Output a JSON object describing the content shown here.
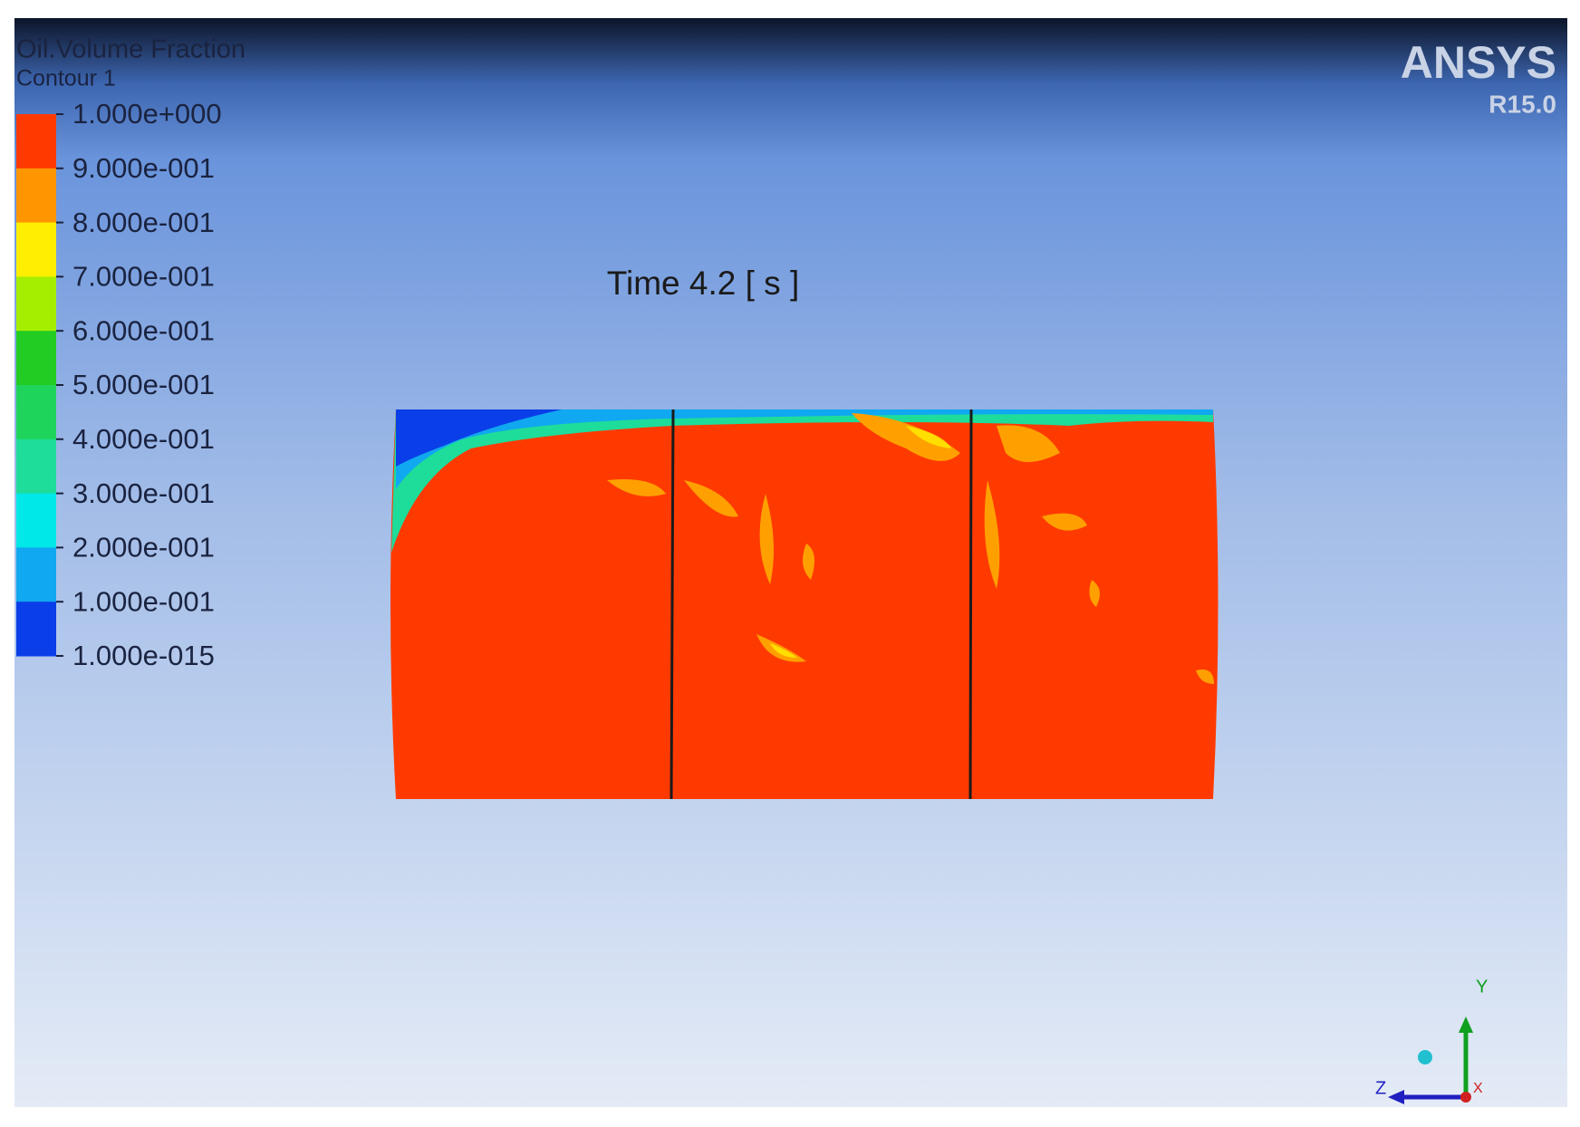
{
  "legend": {
    "title": "Oil.Volume Fraction",
    "subtitle": "Contour 1",
    "labels": [
      "1.000e+000",
      "9.000e-001",
      "8.000e-001",
      "7.000e-001",
      "6.000e-001",
      "5.000e-001",
      "4.000e-001",
      "3.000e-001",
      "2.000e-001",
      "1.000e-001",
      "1.000e-015"
    ],
    "colors": [
      "#ff3a00",
      "#ff9500",
      "#ffee00",
      "#a6ee00",
      "#22cc22",
      "#1ed45a",
      "#1edc9a",
      "#00e8e8",
      "#10a8f0",
      "#0a3ee8"
    ]
  },
  "annotation": "Time 4.2 [ s ]",
  "logo": {
    "name": "ANSYS",
    "version": "R15.0"
  },
  "axes_triad": {
    "y": "Y",
    "z": "Z",
    "x": "X"
  }
}
